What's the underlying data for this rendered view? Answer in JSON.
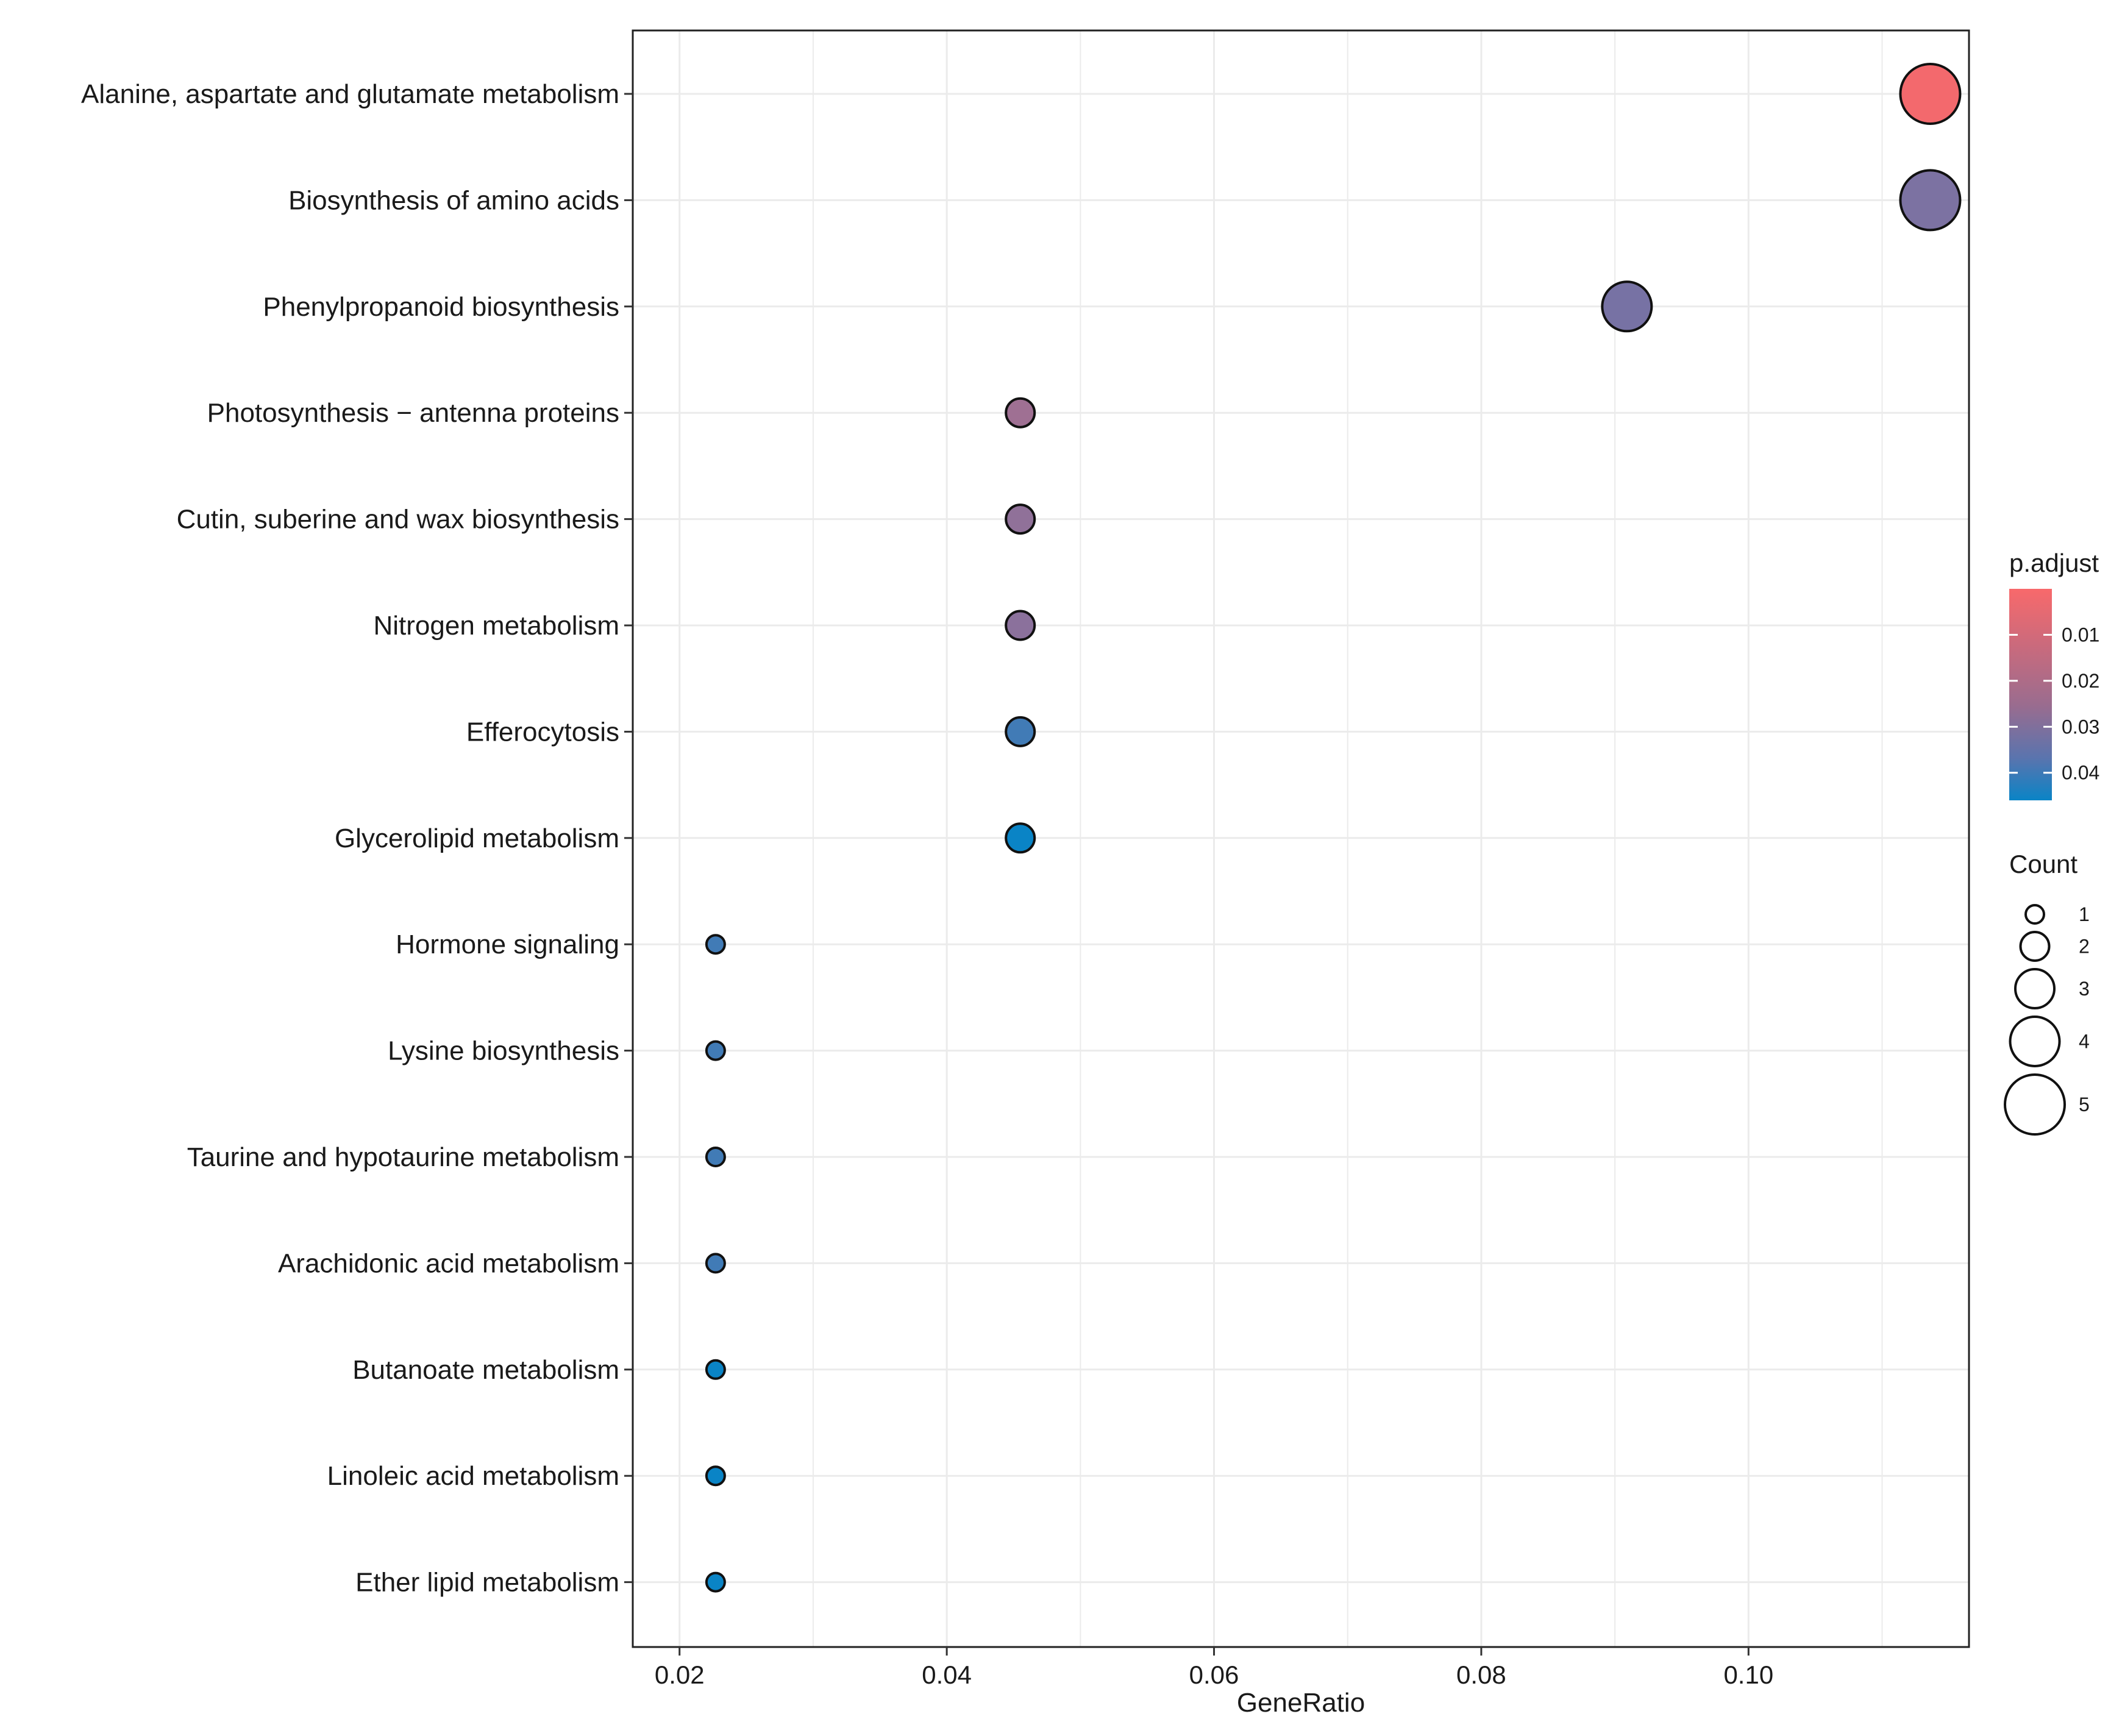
{
  "chart_data": {
    "type": "scatter",
    "title": "",
    "xlabel": "GeneRatio",
    "ylabel": "",
    "xlim": [
      0.0165,
      0.1165
    ],
    "x_ticks": [
      0.02,
      0.04,
      0.06,
      0.08,
      0.1
    ],
    "x_tick_labels": [
      "0.02",
      "0.04",
      "0.06",
      "0.08",
      "0.10"
    ],
    "grid": true,
    "categories": [
      "Alanine, aspartate and glutamate metabolism",
      "Biosynthesis of amino acids",
      "Phenylpropanoid biosynthesis",
      "Photosynthesis − antenna proteins",
      "Cutin, suberine and wax biosynthesis",
      "Nitrogen metabolism",
      "Efferocytosis",
      "Glycerolipid metabolism",
      "Hormone signaling",
      "Lysine biosynthesis",
      "Taurine and hypotaurine metabolism",
      "Arachidonic acid metabolism",
      "Butanoate metabolism",
      "Linoleic acid metabolism",
      "Ether lipid metabolism"
    ],
    "points": [
      {
        "term": "Alanine, aspartate and glutamate metabolism",
        "gene_ratio": 0.1136,
        "count": 5,
        "p_adjust": 0.001
      },
      {
        "term": "Biosynthesis of amino acids",
        "gene_ratio": 0.1136,
        "count": 5,
        "p_adjust": 0.025
      },
      {
        "term": "Phenylpropanoid biosynthesis",
        "gene_ratio": 0.0909,
        "count": 4,
        "p_adjust": 0.026
      },
      {
        "term": "Photosynthesis − antenna proteins",
        "gene_ratio": 0.0455,
        "count": 2,
        "p_adjust": 0.018
      },
      {
        "term": "Cutin, suberine and wax biosynthesis",
        "gene_ratio": 0.0455,
        "count": 2,
        "p_adjust": 0.021
      },
      {
        "term": "Nitrogen metabolism",
        "gene_ratio": 0.0455,
        "count": 2,
        "p_adjust": 0.022
      },
      {
        "term": "Efferocytosis",
        "gene_ratio": 0.0455,
        "count": 2,
        "p_adjust": 0.036
      },
      {
        "term": "Glycerolipid metabolism",
        "gene_ratio": 0.0455,
        "count": 2,
        "p_adjust": 0.046
      },
      {
        "term": "Hormone signaling",
        "gene_ratio": 0.0227,
        "count": 1,
        "p_adjust": 0.036
      },
      {
        "term": "Lysine biosynthesis",
        "gene_ratio": 0.0227,
        "count": 1,
        "p_adjust": 0.036
      },
      {
        "term": "Taurine and hypotaurine metabolism",
        "gene_ratio": 0.0227,
        "count": 1,
        "p_adjust": 0.036
      },
      {
        "term": "Arachidonic acid metabolism",
        "gene_ratio": 0.0227,
        "count": 1,
        "p_adjust": 0.036
      },
      {
        "term": "Butanoate metabolism",
        "gene_ratio": 0.0227,
        "count": 1,
        "p_adjust": 0.046
      },
      {
        "term": "Linoleic acid metabolism",
        "gene_ratio": 0.0227,
        "count": 1,
        "p_adjust": 0.046
      },
      {
        "term": "Ether lipid metabolism",
        "gene_ratio": 0.0227,
        "count": 1,
        "p_adjust": 0.046
      }
    ],
    "legend": {
      "color": {
        "title": "p.adjust",
        "range": [
          0.0,
          0.046
        ],
        "ticks": [
          0.01,
          0.02,
          0.03,
          0.04
        ],
        "tick_labels": [
          "0.01",
          "0.02",
          "0.03",
          "0.04"
        ],
        "low_color": "#f8696b",
        "mid_color": "#6f73a8",
        "high_color": "#0a84c6"
      },
      "size": {
        "title": "Count",
        "values": [
          1,
          2,
          3,
          4,
          5
        ],
        "labels": [
          "1",
          "2",
          "3",
          "4",
          "5"
        ]
      },
      "position": "right"
    }
  },
  "colors": {
    "panel_border": "#222222",
    "grid": "#ebebeb",
    "point_stroke": "#111111"
  }
}
